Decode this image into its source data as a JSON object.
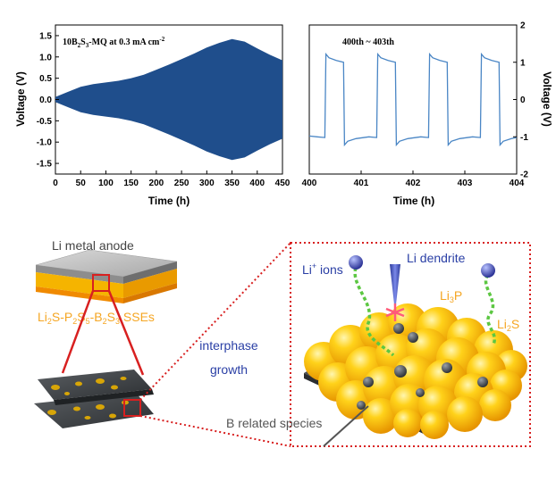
{
  "chart_data": [
    {
      "type": "area",
      "annotation": "10B2S3-MQ at 0.3 mA cm-2",
      "xlabel": "Time (h)",
      "ylabel": "Voltage (V)",
      "xlim": [
        0,
        450
      ],
      "ylim": [
        -1.75,
        1.75
      ],
      "xticks": [
        0,
        50,
        100,
        150,
        200,
        250,
        300,
        350,
        400,
        450
      ],
      "yticks": [
        1.5,
        1.0,
        0.5,
        0.0,
        -0.5,
        -1.0,
        -1.5
      ],
      "series": [
        {
          "x": [
            0,
            25,
            50,
            75,
            100,
            125,
            150,
            175,
            200,
            225,
            250,
            275,
            300,
            325,
            350,
            375,
            400,
            425,
            450
          ],
          "upper": [
            0.06,
            0.18,
            0.3,
            0.36,
            0.4,
            0.44,
            0.5,
            0.58,
            0.7,
            0.82,
            0.95,
            1.08,
            1.22,
            1.33,
            1.42,
            1.36,
            1.2,
            1.05,
            0.92
          ],
          "lower": [
            -0.06,
            -0.18,
            -0.3,
            -0.36,
            -0.4,
            -0.44,
            -0.5,
            -0.58,
            -0.7,
            -0.82,
            -0.95,
            -1.08,
            -1.22,
            -1.33,
            -1.42,
            -1.36,
            -1.2,
            -1.05,
            -0.92
          ]
        }
      ],
      "colors": {
        "series": "#1f4e8c"
      }
    },
    {
      "type": "line",
      "annotation": "400th ~ 403th",
      "xlabel": "Time (h)",
      "ylabel": "Voltage (V)",
      "xlim": [
        400,
        404
      ],
      "ylim": [
        -2,
        2
      ],
      "xticks": [
        400,
        401,
        402,
        403,
        404
      ],
      "yticks": [
        2,
        1,
        0,
        -1,
        -2
      ],
      "series": [
        {
          "x": [
            400.0,
            400.15,
            400.3,
            400.32,
            400.38,
            400.52,
            400.66,
            400.68,
            400.74,
            400.9,
            401.15,
            401.3,
            401.32,
            401.38,
            401.52,
            401.66,
            401.68,
            401.74,
            401.9,
            402.15,
            402.3,
            402.32,
            402.38,
            402.52,
            402.66,
            402.68,
            402.74,
            402.9,
            403.15,
            403.3,
            403.32,
            403.38,
            403.52,
            403.66,
            403.68,
            403.74,
            403.9,
            404.0
          ],
          "y": [
            -0.98,
            -1.0,
            -1.02,
            1.22,
            1.12,
            1.05,
            1.0,
            -1.22,
            -1.12,
            -1.05,
            -1.0,
            -1.02,
            1.22,
            1.12,
            1.05,
            1.0,
            -1.22,
            -1.12,
            -1.05,
            -1.0,
            -1.02,
            1.22,
            1.12,
            1.05,
            1.0,
            -1.22,
            -1.12,
            -1.05,
            -1.0,
            -1.02,
            1.22,
            1.12,
            1.05,
            1.0,
            -1.22,
            -1.12,
            -1.05,
            -1.02
          ]
        }
      ],
      "colors": {
        "series": "#4a86c5"
      }
    }
  ],
  "schematic": {
    "anode_label": "Li metal anode",
    "sse_label": "Li2S-P2S5-B2S3 SSEs",
    "interphase_label": [
      "interphase",
      "growth"
    ],
    "li_ions_label": "Li+ ions",
    "dendrite_label": "Li dendrite",
    "li3p_label": "Li3P",
    "li2s_label": "Li2S",
    "b_species_label": "B related species",
    "colors": {
      "orange": "#f5a623",
      "blue": "#2a3fa5",
      "red": "#d82020",
      "sphere": "#ffcc00",
      "gray": "#555555"
    }
  }
}
